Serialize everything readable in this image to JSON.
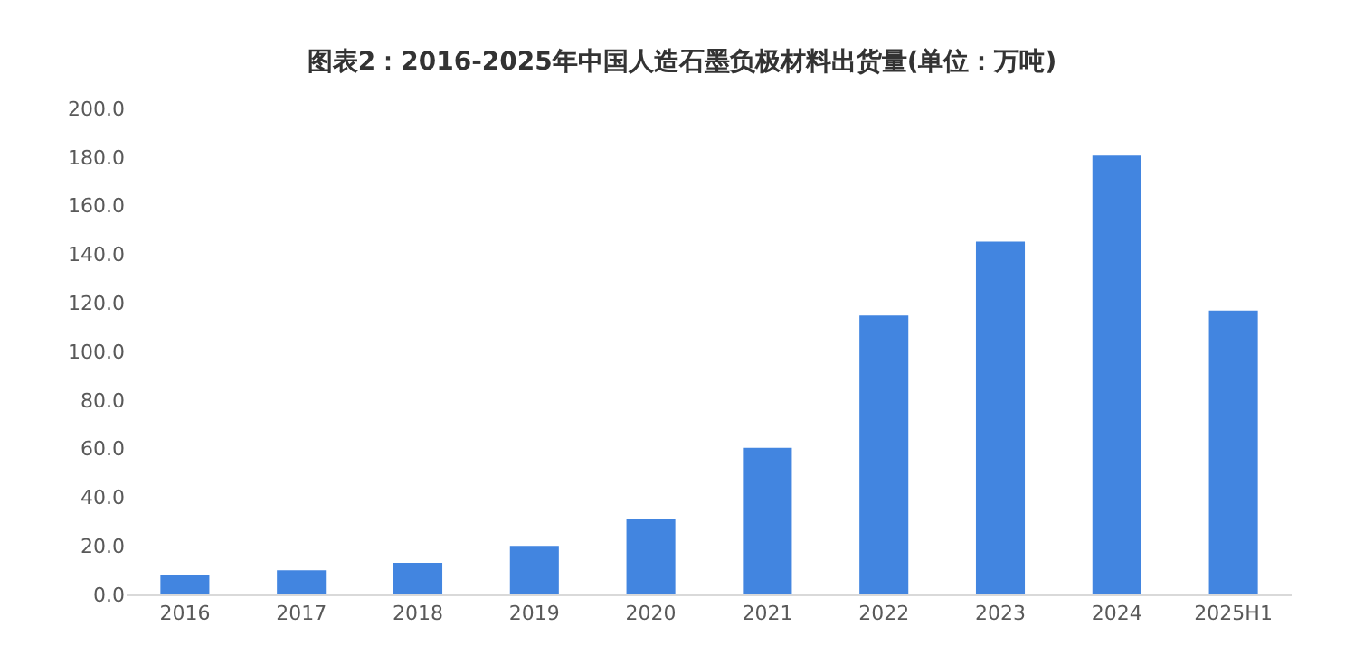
{
  "chart_data": {
    "type": "bar",
    "title": "图表2：2016-2025年中国人造石墨负极材料出货量(单位：万吨)",
    "categories": [
      "2016",
      "2017",
      "2018",
      "2019",
      "2020",
      "2021",
      "2022",
      "2023",
      "2024",
      "2025H1"
    ],
    "values": [
      7.8,
      9.9,
      13.0,
      20.0,
      30.9,
      60.3,
      114.8,
      145.2,
      180.6,
      116.8
    ],
    "color": "#4285e0",
    "ylim": [
      0,
      200
    ],
    "yticks": [
      {
        "value": 0,
        "label": "0.0"
      },
      {
        "value": 20,
        "label": "20.0"
      },
      {
        "value": 40,
        "label": "40.0"
      },
      {
        "value": 60,
        "label": "60.0"
      },
      {
        "value": 80,
        "label": "80.0"
      },
      {
        "value": 100,
        "label": "100.0"
      },
      {
        "value": 120,
        "label": "120.0"
      },
      {
        "value": 140,
        "label": "140.0"
      },
      {
        "value": 160,
        "label": "160.0"
      },
      {
        "value": 180,
        "label": "180.0"
      },
      {
        "value": 200,
        "label": "200.0"
      }
    ],
    "grid": false
  }
}
